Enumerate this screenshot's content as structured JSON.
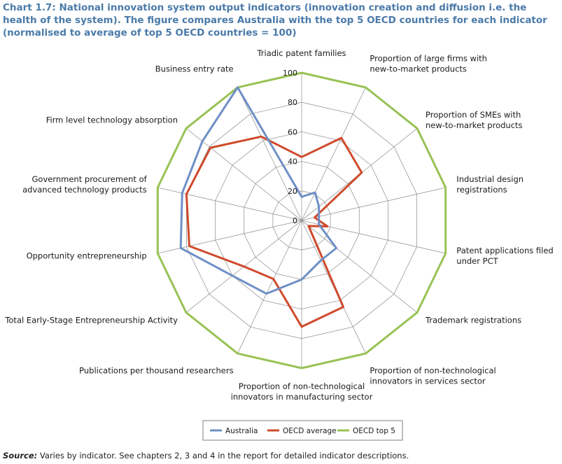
{
  "title": "Chart 1.7: National innovation system output indicators (innovation creation and diffusion i.e. the health of the system). The figure compares Australia with the top 5 OECD countries for each indicator (normalised to average of top 5 OECD countries = 100)",
  "source": {
    "label": "Source:",
    "text": " Varies by indicator. See chapters 2, 3 and 4 in the report for detailed indicator descriptions."
  },
  "colors": {
    "australia": "#6e8fc6",
    "oecd_average": "#cf4a2c",
    "oecd_top5": "#98c255",
    "grid": "#9a9a9a"
  },
  "chart_data": {
    "type": "radar",
    "title": "",
    "rmax": 100,
    "ticks": [
      0,
      20,
      40,
      60,
      80,
      100
    ],
    "categories": [
      [
        "Triadic patent families"
      ],
      [
        "Proportion of large firms with",
        "new-to-market products"
      ],
      [
        "Proportion of SMEs with",
        "new-to-market products"
      ],
      [
        "Industrial design",
        "registrations"
      ],
      [
        "Patent applications filed",
        "under PCT"
      ],
      [
        "Trademark registrations"
      ],
      [
        "Proportion of non-technological",
        "innovators in services sector"
      ],
      [
        "Proportion of non-technological",
        "innovators in manufacturing sector"
      ],
      [
        "Publications per thousand researchers"
      ],
      [
        "Total Early-Stage Entrepreneurship Activity"
      ],
      [
        "Opportunity entrepreneurship"
      ],
      [
        "Government procurement of",
        "advanced technology products"
      ],
      [
        "Firm level technology absorption"
      ],
      [
        "Business entry rate"
      ]
    ],
    "series": [
      {
        "name": "Australia",
        "values": [
          16,
          21,
          15,
          12,
          12,
          30,
          30,
          40,
          55,
          60,
          84,
          83,
          86,
          100
        ]
      },
      {
        "name": "OECD average",
        "values": [
          43,
          62,
          52,
          9,
          18,
          6,
          65,
          72,
          44,
          50,
          78,
          80,
          79,
          63
        ]
      },
      {
        "name": "OECD top 5",
        "values": [
          100,
          100,
          100,
          100,
          100,
          100,
          100,
          100,
          100,
          100,
          100,
          100,
          100,
          100
        ]
      }
    ],
    "legend_position": "bottom"
  }
}
